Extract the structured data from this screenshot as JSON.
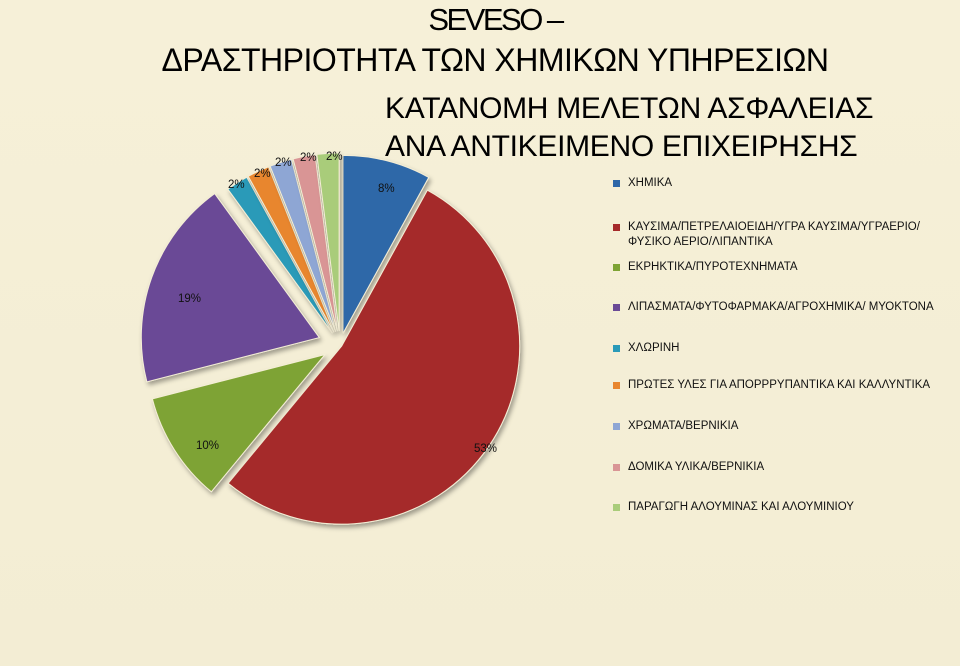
{
  "header": {
    "title_line1": "SEVESO –",
    "title_line2": "ΔΡΑΣΤΗΡΙΟΤΗΤΑ ΤΩΝ ΧΗΜΙΚΩΝ ΥΠΗΡΕΣΙΩΝ"
  },
  "chart_data": {
    "type": "pie",
    "title": [
      "ΚΑΤΑΝΟΜΗ ΜΕΛΕΤΩΝ ΑΣΦΑΛΕΙΑΣ",
      "ΑΝΑ ΑΝΤΙΚΕΙΜΕΝΟ ΕΠΙΧΕΙΡΗΣΗΣ"
    ],
    "legend_position": "right",
    "exploded": true,
    "slices": [
      {
        "name": "ΧΗΜΙΚΑ",
        "label": "8%",
        "value": 8,
        "color": "#2e67a8"
      },
      {
        "name": "ΚΑΥΣΙΜΑ/ΠΕΤΡΕΛΑΙΟΕΙΔΗ/ΥΓΡΑ ΚΑΥΣΙΜΑ/ΥΓΡΑΕΡΙΟ/ΦΥΣΙΚΟ ΑΕΡΙΟ/ΛΙΠΑΝΤΙΚΑ",
        "label": "53%",
        "value": 53,
        "color": "#a52a2a"
      },
      {
        "name": "ΕΚΡΗΚΤΙΚΑ/ΠΥΡΟΤΕΧΝΗΜΑΤΑ",
        "label": "10%",
        "value": 10,
        "color": "#7ea334"
      },
      {
        "name": "ΛΙΠΑΣΜΑΤΑ/ΦΥΤΟΦΑΡΜΑΚΑ/ΑΓΡΟΧΗΜΙΚΑ/ ΜΥΟΚΤΟΝΑ",
        "label": "19%",
        "value": 19,
        "color": "#6a4a96"
      },
      {
        "name": "ΧΛΩΡΙΝΗ",
        "label": "2%",
        "value": 2,
        "color": "#2a9ab8"
      },
      {
        "name": "ΠΡΩΤΕΣ ΥΛΕΣ ΓΙΑ ΑΠΟΡΡΡΥΠΑΝΤΙΚΑ ΚΑΙ ΚΑΛΛΥΝΤΙΚΑ",
        "label": "2%",
        "value": 2,
        "color": "#e8862e"
      },
      {
        "name": "ΧΡΩΜΑΤΑ/ΒΕΡΝΙΚΙΑ",
        "label": "2%",
        "value": 2,
        "color": "#8ea6d4"
      },
      {
        "name": "ΔΟΜΙΚΑ ΥΛΙΚΑ/ΒΕΡΝΙΚΙΑ",
        "label": "2%",
        "value": 2,
        "color": "#d99595"
      },
      {
        "name": "ΠΑΡΑΓΩΓΗ ΑΛΟΥΜΙΝΑΣ ΚΑΙ ΑΛΟΥΜΙΝΙΟΥ",
        "label": "2%",
        "value": 2,
        "color": "#a9cc7a"
      }
    ]
  }
}
